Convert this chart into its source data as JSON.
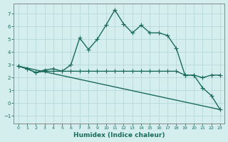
{
  "xlabel": "Humidex (Indice chaleur)",
  "background_color": "#d4eeee",
  "line_color": "#1a6b5a",
  "grid_color": "#b8d8d8",
  "xlim": [
    -0.5,
    23.5
  ],
  "ylim": [
    -1.6,
    7.8
  ],
  "xticks": [
    0,
    1,
    2,
    3,
    4,
    5,
    6,
    7,
    8,
    9,
    10,
    11,
    12,
    13,
    14,
    15,
    16,
    17,
    18,
    19,
    20,
    21,
    22,
    23
  ],
  "yticks": [
    -1,
    0,
    1,
    2,
    3,
    4,
    5,
    6,
    7
  ],
  "series1_x": [
    0,
    1,
    2,
    3,
    4,
    5,
    6,
    7,
    8,
    9,
    10,
    11,
    12,
    13,
    14,
    15,
    16,
    17,
    18,
    19,
    20,
    21,
    22,
    23
  ],
  "series1_y": [
    2.9,
    2.7,
    2.4,
    2.6,
    2.7,
    2.5,
    3.0,
    5.1,
    4.2,
    5.0,
    6.1,
    7.3,
    6.2,
    5.5,
    6.1,
    5.5,
    5.5,
    5.3,
    4.3,
    2.2,
    2.2,
    1.2,
    0.6,
    -0.5
  ],
  "series2_x": [
    0,
    1,
    2,
    3,
    4,
    5,
    6,
    7,
    8,
    9,
    10,
    11,
    12,
    13,
    14,
    15,
    16,
    17,
    18,
    19,
    20,
    21,
    22,
    23
  ],
  "series2_y": [
    2.9,
    2.7,
    2.4,
    2.5,
    2.5,
    2.5,
    2.5,
    2.5,
    2.5,
    2.5,
    2.5,
    2.5,
    2.5,
    2.5,
    2.5,
    2.5,
    2.5,
    2.5,
    2.5,
    2.2,
    2.2,
    2.0,
    2.2,
    2.2
  ],
  "series3_x": [
    0,
    23
  ],
  "series3_y": [
    2.9,
    -0.5
  ],
  "marker": "+",
  "marker_size": 4,
  "line_width": 1.0
}
